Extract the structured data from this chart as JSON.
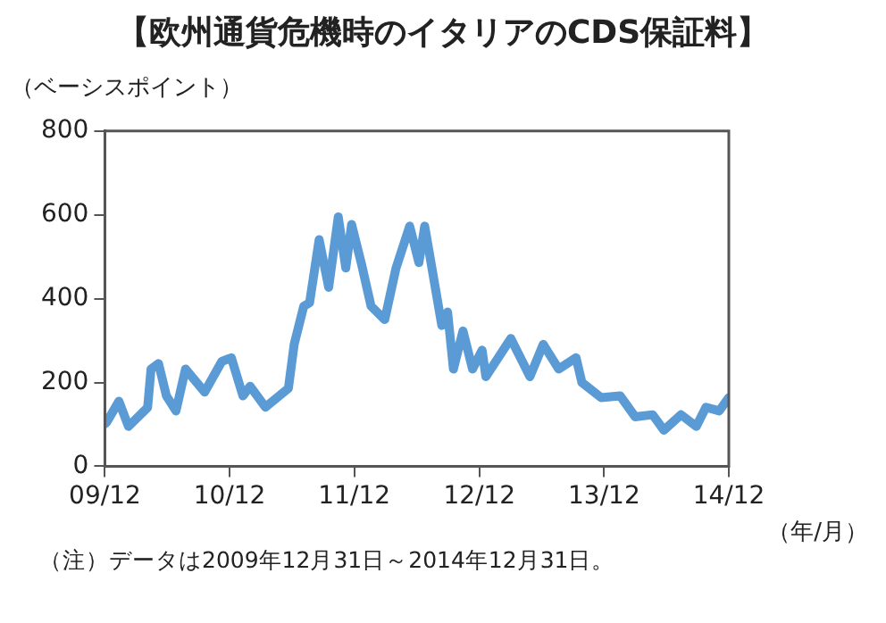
{
  "chart_data": {
    "type": "line",
    "title": "【欧州通貨危機時のイタリアのCDS保証料】",
    "ylabel": "（ベーシスポイント）",
    "xlabel": "（年/月）",
    "annotations": [
      "（注）データは2009年12月31日～2014年12月31日。"
    ],
    "x": [
      "2009-12-31",
      "2010-01-05",
      "2010-02-10",
      "2010-03-10",
      "2010-05-05",
      "2010-05-15",
      "2010-06-06",
      "2010-06-29",
      "2010-07-27",
      "2010-08-24",
      "2010-10-19",
      "2010-12-08",
      "2011-01-05",
      "2011-02-08",
      "2011-03-01",
      "2011-04-15",
      "2011-06-21",
      "2011-07-08",
      "2011-08-05",
      "2011-08-22",
      "2011-09-19",
      "2011-10-17",
      "2011-11-14",
      "2011-12-06",
      "2011-12-23",
      "2012-01-20",
      "2012-02-18",
      "2012-03-29",
      "2012-05-01",
      "2012-06-10",
      "2012-07-07",
      "2012-07-24",
      "2012-09-12",
      "2012-09-29",
      "2012-10-16",
      "2012-11-13",
      "2012-12-11",
      "2013-01-08",
      "2013-01-19",
      "2013-04-02",
      "2013-05-28",
      "2013-07-06",
      "2013-08-20",
      "2013-10-10",
      "2013-10-27",
      "2013-12-22",
      "2014-02-16",
      "2014-04-01",
      "2014-05-22",
      "2014-06-24",
      "2014-08-13",
      "2014-09-27",
      "2014-10-25",
      "2014-12-03",
      "2014-12-31"
    ],
    "series": [
      {
        "color": "#5b9bd5",
        "values": [
          101,
          105,
          155,
          95,
          140,
          232,
          245,
          168,
          132,
          232,
          177,
          250,
          259,
          168,
          191,
          141,
          186,
          291,
          382,
          390,
          541,
          427,
          595,
          473,
          577,
          486,
          382,
          350,
          473,
          573,
          486,
          573,
          336,
          368,
          232,
          323,
          232,
          277,
          214,
          305,
          214,
          291,
          232,
          259,
          200,
          164,
          168,
          118,
          123,
          86,
          123,
          95,
          141,
          132,
          164
        ]
      }
    ],
    "xlim": [
      "2009-12-31",
      "2014-12-31"
    ],
    "xticks": [
      {
        "value": "2009-12-31",
        "label": "09/12"
      },
      {
        "value": "2010-12-31",
        "label": "10/12"
      },
      {
        "value": "2011-12-31",
        "label": "11/12"
      },
      {
        "value": "2012-12-31",
        "label": "12/12"
      },
      {
        "value": "2013-12-31",
        "label": "13/12"
      },
      {
        "value": "2014-12-31",
        "label": "14/12"
      }
    ],
    "ylim": [
      0,
      800
    ],
    "yticks": [
      0,
      200,
      400,
      600,
      800
    ],
    "grid": false,
    "legend": false,
    "marker": "none",
    "line_style": "solid"
  }
}
